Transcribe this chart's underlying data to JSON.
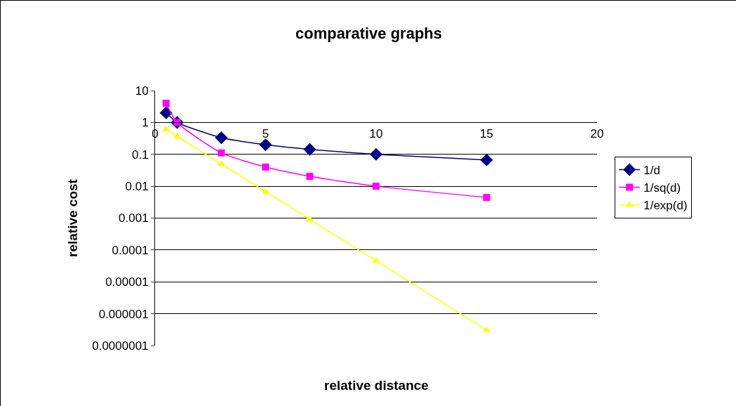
{
  "chart_data": {
    "type": "line",
    "title": "comparative graphs",
    "xlabel": "relative distance",
    "ylabel": "relative cost",
    "x": [
      0.5,
      1,
      3,
      5,
      7,
      10,
      15
    ],
    "series": [
      {
        "name": "1/d",
        "color": "#000080",
        "marker": "diamond",
        "values": [
          2,
          1,
          0.333,
          0.2,
          0.143,
          0.1,
          0.0667
        ]
      },
      {
        "name": "1/sq(d)",
        "color": "#ff00ff",
        "marker": "square",
        "values": [
          4,
          1,
          0.111,
          0.04,
          0.0204,
          0.01,
          0.00444
        ]
      },
      {
        "name": "1/exp(d)",
        "color": "#ffff00",
        "marker": "triangle",
        "values": [
          0.607,
          0.368,
          0.0498,
          0.00674,
          0.000912,
          4.54e-05,
          3.06e-07
        ]
      }
    ],
    "log": "y",
    "xlim": [
      0,
      20
    ],
    "xticks": [
      0,
      5,
      10,
      15,
      20
    ],
    "ylim": [
      1e-07,
      10
    ],
    "yticks": [
      {
        "value": 10,
        "label": "10"
      },
      {
        "value": 1,
        "label": "1"
      },
      {
        "value": 0.1,
        "label": "0.1"
      },
      {
        "value": 0.01,
        "label": "0.01"
      },
      {
        "value": 0.001,
        "label": "0.001"
      },
      {
        "value": 0.0001,
        "label": "0.0001"
      },
      {
        "value": 1e-05,
        "label": "0.00001"
      },
      {
        "value": 1e-06,
        "label": "0.000001"
      },
      {
        "value": 1e-07,
        "label": "0.0000001"
      }
    ],
    "grid": "y",
    "legend": "right"
  }
}
